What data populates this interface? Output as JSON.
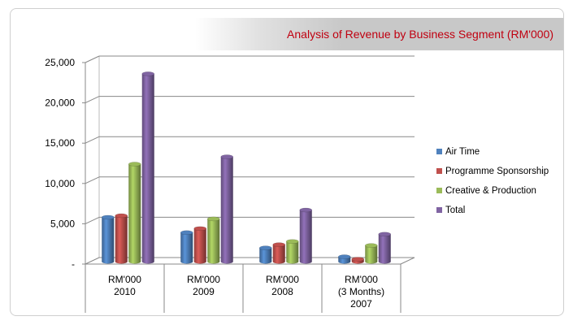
{
  "chart_data": {
    "type": "bar",
    "title": "Analysis of Revenue by Business Segment (RM'000)",
    "xlabel": "",
    "ylabel": "",
    "ylim": [
      0,
      25000
    ],
    "yticks": [
      "-",
      "5,000",
      "10,000",
      "15,000",
      "20,000",
      "25,000"
    ],
    "categories": [
      [
        "RM'000",
        "2010"
      ],
      [
        "RM'000",
        "2009"
      ],
      [
        "RM'000",
        "2008"
      ],
      [
        "RM'000",
        "(3 Months)",
        "2007"
      ]
    ],
    "series": [
      {
        "name": "Air Time",
        "color": "#4f81bd",
        "values": [
          5500,
          3600,
          1700,
          600
        ]
      },
      {
        "name": "Programme Sponsorship",
        "color": "#c0504d",
        "values": [
          5700,
          4100,
          2100,
          300
        ]
      },
      {
        "name": "Creative & Production",
        "color": "#9bbb59",
        "values": [
          12100,
          5300,
          2500,
          2000
        ]
      },
      {
        "name": "Total",
        "color": "#8064a2",
        "values": [
          23300,
          13000,
          6400,
          3400
        ]
      }
    ],
    "grid": true,
    "legend_position": "right"
  }
}
